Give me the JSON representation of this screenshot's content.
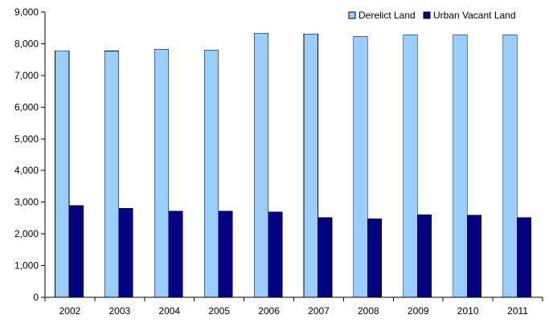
{
  "chart_data": {
    "type": "bar",
    "categories": [
      "2002",
      "2003",
      "2004",
      "2005",
      "2006",
      "2007",
      "2008",
      "2009",
      "2010",
      "2011"
    ],
    "series": [
      {
        "name": "Derelict Land",
        "color": "#99CCFF",
        "values": [
          7780,
          7770,
          7830,
          7800,
          8330,
          8310,
          8230,
          8280,
          8280,
          8280
        ]
      },
      {
        "name": "Urban Vacant Land",
        "color": "#000080",
        "values": [
          2890,
          2810,
          2720,
          2720,
          2690,
          2510,
          2480,
          2600,
          2590,
          2520
        ]
      }
    ],
    "y_ticks": [
      "0",
      "1,000",
      "2,000",
      "3,000",
      "4,000",
      "5,000",
      "6,000",
      "7,000",
      "8,000",
      "9,000"
    ],
    "ylim": [
      0,
      9000
    ],
    "ystep": 1000,
    "grid": false,
    "legend_position": "top-right",
    "title": "",
    "xlabel": "",
    "ylabel": ""
  }
}
